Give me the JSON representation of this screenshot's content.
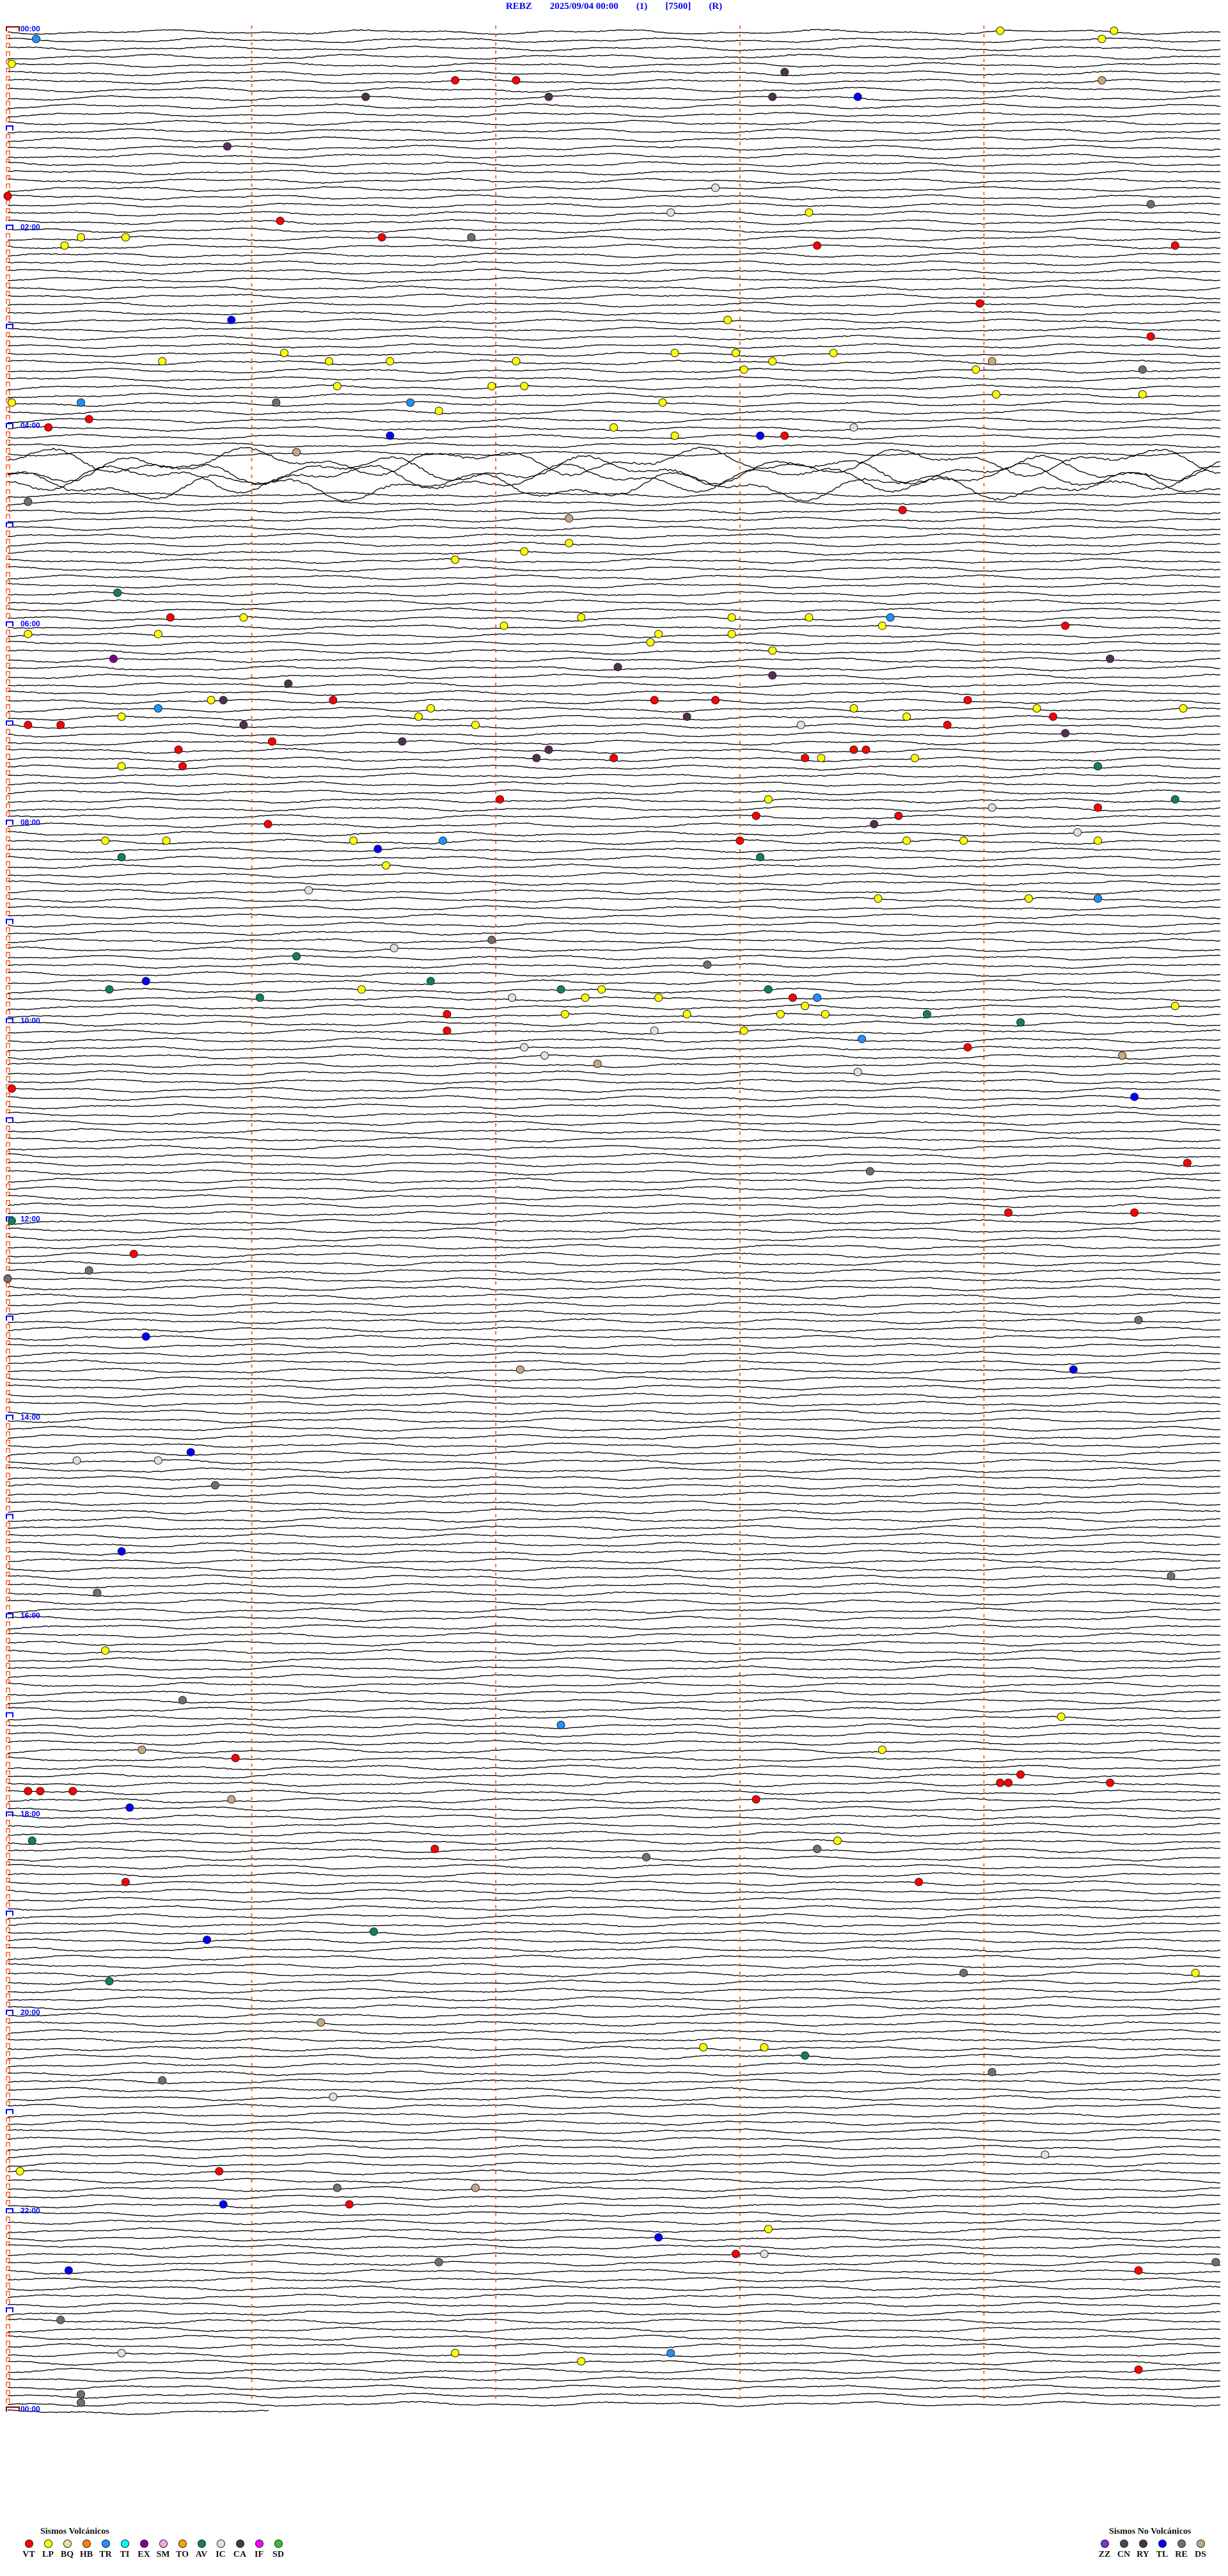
{
  "header": {
    "station": "REBZ",
    "datetime": "2025/09/04 00:00",
    "channel": "(1)",
    "scale": "[7500]",
    "mode": "(R)"
  },
  "chart_data": {
    "type": "helicorder",
    "minutes_per_line": 5,
    "minute_marks": [
      0,
      1,
      2,
      3,
      4
    ],
    "hour_labels": [
      "00:00",
      "02:00",
      "04:00",
      "06:00",
      "08:00",
      "10:00",
      "12:00",
      "14:00",
      "16:00",
      "18:00",
      "20:00",
      "22:00",
      "00:00"
    ],
    "high_amplitude_periods": [
      [
        "04:20",
        "04:40"
      ]
    ],
    "colors": {
      "trace": "#000000",
      "minute_mark": "#ff4000",
      "hour_label": "#0000ff",
      "start_mark": "#800000"
    },
    "events": [
      [
        "00:04:04",
        "LP"
      ],
      [
        "00:04:32",
        "LP"
      ],
      [
        "00:05:07",
        "TR"
      ],
      [
        "00:09:29",
        "LP"
      ],
      [
        "00:20:01",
        "LP"
      ],
      [
        "00:28:11",
        "CA"
      ],
      [
        "00:31:50",
        "VT"
      ],
      [
        "00:32:05",
        "VT"
      ],
      [
        "00:34:29",
        "DS"
      ],
      [
        "00:41:28",
        "CA"
      ],
      [
        "00:42:13",
        "CA"
      ],
      [
        "00:43:08",
        "CA"
      ],
      [
        "00:43:29",
        "TL"
      ],
      [
        "01:10:54",
        "CA"
      ],
      [
        "01:37:54",
        "IC"
      ],
      [
        "01:40:00",
        "VT"
      ],
      [
        "01:49:41",
        "RE"
      ],
      [
        "01:52:43",
        "IC"
      ],
      [
        "01:53:17",
        "LP"
      ],
      [
        "01:56:07",
        "VT"
      ],
      [
        "02:05:18",
        "LP"
      ],
      [
        "02:05:29",
        "LP"
      ],
      [
        "02:06:32",
        "VT"
      ],
      [
        "02:06:54",
        "RE"
      ],
      [
        "02:10:14",
        "LP"
      ],
      [
        "02:13:19",
        "VT"
      ],
      [
        "02:14:47",
        "VT"
      ],
      [
        "02:48:59",
        "VT"
      ],
      [
        "02:55:55",
        "TL"
      ],
      [
        "02:57:57",
        "LP"
      ],
      [
        "03:09:41",
        "VT"
      ],
      [
        "03:16:08",
        "LP"
      ],
      [
        "03:17:44",
        "LP"
      ],
      [
        "03:17:59",
        "LP"
      ],
      [
        "03:18:23",
        "LP"
      ],
      [
        "03:20:38",
        "LP"
      ],
      [
        "03:21:19",
        "LP"
      ],
      [
        "03:21:34",
        "LP"
      ],
      [
        "03:22:05",
        "LP"
      ],
      [
        "03:23:08",
        "LP"
      ],
      [
        "03:24:02",
        "DS"
      ],
      [
        "03:28:01",
        "LP"
      ],
      [
        "03:28:58",
        "LP"
      ],
      [
        "03:29:39",
        "RE"
      ],
      [
        "03:36:21",
        "LP"
      ],
      [
        "03:36:59",
        "LP"
      ],
      [
        "03:37:07",
        "LP"
      ],
      [
        "03:44:03",
        "LP"
      ],
      [
        "03:44:39",
        "LP"
      ],
      [
        "03:45:01",
        "LP"
      ],
      [
        "03:45:18",
        "TR"
      ],
      [
        "03:46:06",
        "RE"
      ],
      [
        "03:46:39",
        "TR"
      ],
      [
        "03:47:41",
        "LP"
      ],
      [
        "03:51:46",
        "LP"
      ],
      [
        "03:55:20",
        "VT"
      ],
      [
        "04:00:10",
        "VT"
      ],
      [
        "04:02:29",
        "LP"
      ],
      [
        "04:03:28",
        "IC"
      ],
      [
        "04:06:34",
        "TL"
      ],
      [
        "04:07:44",
        "LP"
      ],
      [
        "04:08:05",
        "TL"
      ],
      [
        "04:08:11",
        "VT"
      ],
      [
        "04:16:11",
        "DS"
      ],
      [
        "04:45:05",
        "RE"
      ],
      [
        "04:53:40",
        "VT"
      ],
      [
        "04:57:18",
        "DS"
      ],
      [
        "05:12:18",
        "LP"
      ],
      [
        "05:17:07",
        "LP"
      ],
      [
        "05:21:50",
        "LP"
      ],
      [
        "05:40:27",
        "AV"
      ],
      [
        "05:55:40",
        "VT"
      ],
      [
        "05:55:58",
        "LP"
      ],
      [
        "05:57:21",
        "LP"
      ],
      [
        "05:57:58",
        "LP"
      ],
      [
        "05:58:17",
        "LP"
      ],
      [
        "05:58:37",
        "TR"
      ],
      [
        "06:02:02",
        "LP"
      ],
      [
        "06:03:35",
        "LP"
      ],
      [
        "06:04:20",
        "VT"
      ],
      [
        "06:05:05",
        "LP"
      ],
      [
        "06:05:37",
        "LP"
      ],
      [
        "06:07:40",
        "LP"
      ],
      [
        "06:07:58",
        "LP"
      ],
      [
        "06:12:38",
        "LP"
      ],
      [
        "06:18:08",
        "LP"
      ],
      [
        "06:20:26",
        "EX"
      ],
      [
        "06:24:31",
        "CA"
      ],
      [
        "06:27:30",
        "CA"
      ],
      [
        "06:33:08",
        "CA"
      ],
      [
        "06:36:09",
        "CA"
      ],
      [
        "06:45:50",
        "LP"
      ],
      [
        "06:45:53",
        "CA"
      ],
      [
        "06:46:20",
        "VT"
      ],
      [
        "06:47:39",
        "VT"
      ],
      [
        "06:47:54",
        "VT"
      ],
      [
        "06:48:56",
        "VT"
      ],
      [
        "06:50:37",
        "TR"
      ],
      [
        "06:51:44",
        "LP"
      ],
      [
        "06:53:28",
        "LP"
      ],
      [
        "06:54:13",
        "LP"
      ],
      [
        "06:54:49",
        "LP"
      ],
      [
        "06:55:28",
        "LP"
      ],
      [
        "06:56:41",
        "LP"
      ],
      [
        "06:57:47",
        "CA"
      ],
      [
        "06:58:41",
        "LP"
      ],
      [
        "06:59:17",
        "VT"
      ],
      [
        "07:00:05",
        "VT"
      ],
      [
        "07:00:13",
        "VT"
      ],
      [
        "07:00:58",
        "CA"
      ],
      [
        "07:01:55",
        "LP"
      ],
      [
        "07:03:15",
        "IC"
      ],
      [
        "07:03:51",
        "VT"
      ],
      [
        "07:09:20",
        "CA"
      ],
      [
        "07:11:05",
        "VT"
      ],
      [
        "07:11:37",
        "CA"
      ],
      [
        "07:15:42",
        "VT"
      ],
      [
        "07:17:13",
        "CA"
      ],
      [
        "07:18:28",
        "VT"
      ],
      [
        "07:18:31",
        "VT"
      ],
      [
        "07:22:10",
        "CA"
      ],
      [
        "07:22:29",
        "VT"
      ],
      [
        "07:23:16",
        "VT"
      ],
      [
        "07:23:20",
        "LP"
      ],
      [
        "07:23:43",
        "LP"
      ],
      [
        "07:25:28",
        "LP"
      ],
      [
        "07:25:43",
        "VT"
      ],
      [
        "07:29:28",
        "AV"
      ],
      [
        "07:47:01",
        "VT"
      ],
      [
        "07:48:07",
        "LP"
      ],
      [
        "07:49:47",
        "AV"
      ],
      [
        "07:54:02",
        "IC"
      ],
      [
        "07:54:28",
        "VT"
      ],
      [
        "07:58:04",
        "VT"
      ],
      [
        "07:58:39",
        "VT"
      ],
      [
        "08:01:04",
        "VT"
      ],
      [
        "08:03:33",
        "CA"
      ],
      [
        "08:09:23",
        "IC"
      ],
      [
        "08:10:24",
        "LP"
      ],
      [
        "08:10:39",
        "LP"
      ],
      [
        "08:11:25",
        "LP"
      ],
      [
        "08:11:47",
        "TR"
      ],
      [
        "08:13:00",
        "VT"
      ],
      [
        "08:13:41",
        "LP"
      ],
      [
        "08:13:55",
        "LP"
      ],
      [
        "08:14:28",
        "LP"
      ],
      [
        "08:16:31",
        "TL"
      ],
      [
        "08:20:28",
        "AV"
      ],
      [
        "08:23:05",
        "AV"
      ],
      [
        "08:26:33",
        "LP"
      ],
      [
        "08:41:14",
        "IC"
      ],
      [
        "08:48:34",
        "LP"
      ],
      [
        "08:49:11",
        "LP"
      ],
      [
        "08:49:28",
        "TR"
      ],
      [
        "09:11:59",
        "RE"
      ],
      [
        "09:16:35",
        "IC"
      ],
      [
        "09:21:11",
        "AV"
      ],
      [
        "09:27:52",
        "RE"
      ],
      [
        "09:35:34",
        "TL"
      ],
      [
        "09:36:44",
        "AV"
      ],
      [
        "09:40:25",
        "AV"
      ],
      [
        "09:41:27",
        "LP"
      ],
      [
        "09:42:16",
        "AV"
      ],
      [
        "09:42:26",
        "LP"
      ],
      [
        "09:43:07",
        "AV"
      ],
      [
        "09:46:02",
        "AV"
      ],
      [
        "09:47:04",
        "IC"
      ],
      [
        "09:47:22",
        "LP"
      ],
      [
        "09:47:40",
        "LP"
      ],
      [
        "09:48:13",
        "VT"
      ],
      [
        "09:48:19",
        "TR"
      ],
      [
        "09:53:16",
        "LP"
      ],
      [
        "09:54:47",
        "LP"
      ],
      [
        "09:56:48",
        "VT"
      ],
      [
        "09:57:17",
        "LP"
      ],
      [
        "09:57:47",
        "LP"
      ],
      [
        "09:58:10",
        "LP"
      ],
      [
        "09:58:21",
        "LP"
      ],
      [
        "09:58:46",
        "AV"
      ],
      [
        "10:04:09",
        "AV"
      ],
      [
        "10:06:48",
        "VT"
      ],
      [
        "10:07:39",
        "IC"
      ],
      [
        "10:08:01",
        "LP"
      ],
      [
        "10:13:30",
        "TR"
      ],
      [
        "10:17:07",
        "IC"
      ],
      [
        "10:18:56",
        "VT"
      ],
      [
        "10:22:12",
        "IC"
      ],
      [
        "10:24:34",
        "DS"
      ],
      [
        "10:27:25",
        "DS"
      ],
      [
        "10:33:29",
        "IC"
      ],
      [
        "10:40:01",
        "VT"
      ],
      [
        "10:49:37",
        "TL"
      ],
      [
        "11:29:50",
        "VT"
      ],
      [
        "11:33:32",
        "RE"
      ],
      [
        "11:59:06",
        "VT"
      ],
      [
        "11:59:37",
        "VT"
      ],
      [
        "12:00:01",
        "AV"
      ],
      [
        "12:20:31",
        "VT"
      ],
      [
        "12:30:20",
        "RE"
      ],
      [
        "12:35:00",
        "RE"
      ],
      [
        "13:04:38",
        "RE"
      ],
      [
        "13:10:34",
        "TL"
      ],
      [
        "13:32:06",
        "DS"
      ],
      [
        "13:34:22",
        "TL"
      ],
      [
        "14:20:45",
        "TL"
      ],
      [
        "14:25:17",
        "IC"
      ],
      [
        "14:25:37",
        "IC"
      ],
      [
        "14:40:51",
        "RE"
      ],
      [
        "15:20:28",
        "TL"
      ],
      [
        "15:39:46",
        "RE"
      ],
      [
        "15:45:22",
        "RE"
      ],
      [
        "16:20:24",
        "LP"
      ],
      [
        "16:50:43",
        "RE"
      ],
      [
        "17:04:19",
        "LP"
      ],
      [
        "17:07:16",
        "TR"
      ],
      [
        "17:20:33",
        "DS"
      ],
      [
        "17:23:35",
        "LP"
      ],
      [
        "17:25:56",
        "VT"
      ],
      [
        "17:39:09",
        "VT"
      ],
      [
        "17:44:04",
        "VT"
      ],
      [
        "17:44:06",
        "VT"
      ],
      [
        "17:44:31",
        "VT"
      ],
      [
        "17:45:05",
        "VT"
      ],
      [
        "17:45:08",
        "VT"
      ],
      [
        "17:45:16",
        "VT"
      ],
      [
        "17:50:55",
        "DS"
      ],
      [
        "17:53:04",
        "VT"
      ],
      [
        "17:55:30",
        "TL"
      ],
      [
        "18:15:06",
        "AV"
      ],
      [
        "18:18:24",
        "LP"
      ],
      [
        "18:21:45",
        "VT"
      ],
      [
        "18:23:19",
        "RE"
      ],
      [
        "18:27:37",
        "RE"
      ],
      [
        "18:40:29",
        "VT"
      ],
      [
        "18:43:44",
        "VT"
      ],
      [
        "19:11:30",
        "AV"
      ],
      [
        "19:15:49",
        "TL"
      ],
      [
        "19:38:55",
        "RE"
      ],
      [
        "19:39:52",
        "LP"
      ],
      [
        "19:40:25",
        "AV"
      ],
      [
        "20:06:17",
        "DS"
      ],
      [
        "20:22:51",
        "LP"
      ],
      [
        "20:23:06",
        "LP"
      ],
      [
        "20:28:16",
        "AV"
      ],
      [
        "20:39:02",
        "RE"
      ],
      [
        "20:40:38",
        "RE"
      ],
      [
        "20:51:20",
        "IC"
      ],
      [
        "21:29:15",
        "IC"
      ],
      [
        "21:35:03",
        "LP"
      ],
      [
        "21:35:52",
        "VT"
      ],
      [
        "21:46:21",
        "RE"
      ],
      [
        "21:46:55",
        "DS"
      ],
      [
        "21:55:53",
        "TL"
      ],
      [
        "21:56:24",
        "VT"
      ],
      [
        "22:13:07",
        "LP"
      ],
      [
        "22:17:40",
        "TL"
      ],
      [
        "22:27:59",
        "VT"
      ],
      [
        "22:28:06",
        "IC"
      ],
      [
        "22:31:46",
        "RE"
      ],
      [
        "22:34:57",
        "RE"
      ],
      [
        "22:35:15",
        "TL"
      ],
      [
        "22:39:38",
        "VT"
      ],
      [
        "23:05:13",
        "RE"
      ],
      [
        "23:25:28",
        "IC"
      ],
      [
        "23:26:50",
        "LP"
      ],
      [
        "23:27:43",
        "TR"
      ],
      [
        "23:32:21",
        "LP"
      ],
      [
        "23:39:38",
        "VT"
      ],
      [
        "23:50:18",
        "RE"
      ],
      [
        "23:55:18",
        "RE"
      ]
    ]
  },
  "legend_volcanic": {
    "title": "Sismos Volcánicos",
    "items": [
      {
        "code": "VT",
        "color": "#ff0000"
      },
      {
        "code": "LP",
        "color": "#ffff00"
      },
      {
        "code": "BQ",
        "color": "#f0dca0"
      },
      {
        "code": "HB",
        "color": "#ff8010"
      },
      {
        "code": "TR",
        "color": "#2090ff"
      },
      {
        "code": "TI",
        "color": "#00ffff"
      },
      {
        "code": "EX",
        "color": "#800080"
      },
      {
        "code": "SM",
        "color": "#f0a8e0"
      },
      {
        "code": "TO",
        "color": "#ffa000"
      },
      {
        "code": "AV",
        "color": "#108060"
      },
      {
        "code": "IC",
        "color": "#e0e0e0"
      },
      {
        "code": "CA",
        "color": "#503050"
      },
      {
        "code": "IF",
        "color": "#ff00ff"
      },
      {
        "code": "SD",
        "color": "#30c030"
      }
    ]
  },
  "legend_non_volcanic": {
    "title": "Sismos No Volcánicos",
    "items": [
      {
        "code": "ZZ",
        "color": "#8030d0"
      },
      {
        "code": "CN",
        "color": "#504060"
      },
      {
        "code": "RY",
        "color": "#503050"
      },
      {
        "code": "TL",
        "color": "#0000ff"
      },
      {
        "code": "RE",
        "color": "#707070"
      },
      {
        "code": "DS",
        "color": "#c8a880"
      }
    ]
  }
}
